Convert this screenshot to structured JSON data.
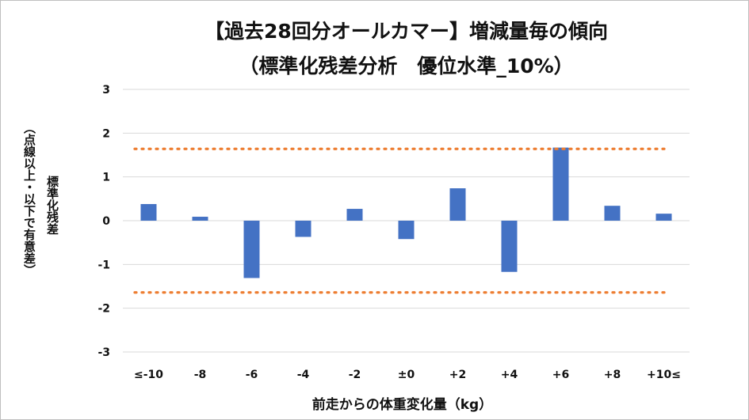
{
  "chart_data": {
    "type": "bar",
    "title": "【過去28回分オールカマー】増減量毎の傾向",
    "subtitle": "（標準化残差分析　優位水準_10%）",
    "xlabel": "前走からの体重変化量（kg）",
    "ylabel": "標準化残差",
    "ylabel_sub": "（点線以上・以下で有意差）",
    "categories": [
      "≤-10",
      "-8",
      "-6",
      "-4",
      "-2",
      "±0",
      "+2",
      "+4",
      "+6",
      "+8",
      "+10≤"
    ],
    "values": [
      0.38,
      0.09,
      -1.31,
      -0.37,
      0.27,
      -0.42,
      0.74,
      -1.17,
      1.67,
      0.34,
      0.16
    ],
    "ylim": [
      -3,
      3
    ],
    "yticks": [
      3,
      2,
      1,
      0,
      -1,
      -2,
      -3
    ],
    "threshold_lines": [
      1.64,
      -1.64
    ],
    "grid": true,
    "legend": "none",
    "colors": {
      "bar": "#4472c4",
      "threshold": "#ed7d31",
      "grid": "#d9d9d9"
    }
  }
}
